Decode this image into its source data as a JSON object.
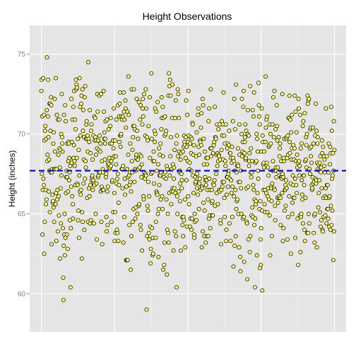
{
  "chart_data": {
    "type": "scatter",
    "title": "Height Observations",
    "xlabel": "",
    "ylabel": "Height (inches)",
    "ylim": [
      57.6,
      76.8
    ],
    "yticks": [
      60,
      65,
      70,
      75
    ],
    "xlim": [
      -40,
      1040
    ],
    "n_points": 1000,
    "y_values": [
      72.7,
      73.4,
      67.5,
      71.1,
      63.7,
      66.5,
      73.5,
      67.2,
      66.8,
      71.2,
      62.5,
      69.6,
      64.5,
      70.2,
      70.5,
      66.5,
      65.6,
      69.7,
      65.9,
      71.5,
      74.8,
      68.3,
      68.7,
      71.1,
      73.4,
      69.8,
      66.4,
      68.4,
      67.7,
      71.9,
      65.1,
      71.9,
      70.2,
      67.6,
      72.3,
      71.8,
      63.1,
      67.6,
      67.8,
      66.2,
      65.7,
      65.8,
      69.4,
      65.4,
      70.1,
      64.5,
      67.8,
      72.2,
      68.9,
      67.8,
      65.6,
      73.5,
      66.3,
      63.3,
      67.8,
      71.2,
      65.9,
      66.5,
      63.9,
      70.9,
      68.7,
      66.1,
      64.9,
      70.9,
      69.1,
      67.9,
      62.2,
      69.0,
      66.6,
      64.4,
      70.0,
      67.4,
      72.5,
      69.8,
      69.4,
      68.9,
      64.1,
      61.0,
      59.6,
      63.0,
      71.2,
      63.7,
      65.0,
      62.4,
      71.8,
      63.5,
      70.8,
      66.3,
      67.3,
      67.7,
      63.7,
      67.3,
      69.4,
      62.8,
      66.4,
      68.3,
      69.5,
      69.4,
      67.1,
      68.5,
      67.6,
      64.6,
      68.0,
      60.4,
      64.1,
      66.7,
      72.2,
      68.2,
      69.5,
      66.1,
      70.9,
      65.6,
      64.7,
      71.7,
      68.5,
      69.3,
      72.7,
      68.3,
      68.0,
      70.9,
      66.8,
      70.3,
      73.4,
      72.8,
      73.1,
      68.5,
      72.9,
      66.9,
      66.8,
      69.7,
      64.6,
      65.2,
      69.0,
      63.5,
      67.4,
      73.5,
      66.4,
      71.7,
      69.9,
      66.2,
      66.5,
      71.9,
      72.4,
      62.2,
      65.1,
      72.8,
      64.5,
      70.2,
      71.5,
      66.9,
      68.4,
      69.8,
      64.0,
      72.3,
      67.2,
      73.0,
      68.3,
      67.9,
      69.7,
      70.6,
      70.8,
      69.7,
      66.0,
      69.9,
      68.9,
      64.5,
      74.5,
      69.7,
      66.6,
      69.5,
      66.1,
      71.5,
      64.4,
      66.8,
      68.8,
      64.6,
      70.2,
      70.6,
      67.1,
      67.3,
      67.4,
      68.4,
      66.5,
      67.1,
      69.9,
      64.4,
      66.9,
      71.1,
      66.8,
      69.6,
      71.0,
      69.8,
      65.0,
      68.7,
      69.6,
      66.9,
      63.4,
      69.1,
      72.5,
      71.4,
      67.3,
      69.6,
      67.4,
      69.0,
      67.6,
      72.4,
      69.9,
      67.6,
      68.9,
      69.4,
      66.4,
      72.5,
      64.5,
      66.7,
      68.3,
      63.1,
      66.5,
      67.8,
      67.6,
      66.5,
      72.7,
      71.4,
      69.7,
      70.1,
      68.4,
      69.4,
      69.7,
      70.8,
      67.3,
      67.5,
      64.8,
      63.9,
      70.9,
      66.4,
      64.3,
      66.7,
      68.2,
      68.0,
      70.3,
      68.1,
      68.5,
      67.8,
      67.9,
      69.4,
      70.5,
      71.0,
      68.0,
      68.3,
      64.5,
      69.4,
      67.0,
      67.1,
      68.5,
      69.6,
      65.1,
      69.1,
      71.6,
      68.6,
      66.3,
      63.3,
      69.6,
      65.1,
      63.8,
      68.6,
      68.1,
      70.9,
      66.9,
      64.0,
      67.2,
      63.8,
      67.5,
      71.8,
      63.3,
      65.7,
      66.8,
      71.1,
      69.5,
      71.9,
      72.6,
      69.9,
      69.2,
      69.9,
      70.0,
      71.1,
      67.8,
      70.9,
      67.8,
      66.6,
      71.1,
      68.0,
      63.2,
      72.6,
      71.4,
      64.8,
      70.9,
      67.2,
      66.2,
      72.1,
      71.6,
      70.4,
      62.1,
      66.7,
      62.1,
      67.8,
      71.4,
      62.1,
      67.3,
      68.7,
      73.6,
      71.2,
      67.4,
      64.3,
      66.8,
      67.6,
      69.4,
      67.0,
      61.5,
      66.4,
      63.6,
      72.8,
      68.3,
      67.6,
      69.0,
      64.5,
      69.8,
      70.5,
      65.3,
      72.8,
      70.5,
      67.0,
      70.3,
      67.8,
      64.7,
      67.7,
      65.4,
      68.5,
      68.7,
      72.2,
      70.2,
      65.0,
      68.4,
      68.4,
      69.7,
      67.8,
      65.5,
      72.0,
      65.6,
      67.9,
      68.7,
      70.9,
      64.3,
      71.8,
      64.0,
      68.6,
      67.3,
      68.1,
      62.7,
      70.6,
      71.6,
      72.2,
      71.1,
      66.1,
      65.9,
      72.5,
      67.6,
      67.4,
      67.2,
      69.9,
      67.5,
      72.8,
      67.4,
      71.6,
      59.0,
      69.8,
      63.6,
      65.5,
      69.6,
      65.2,
      67.0,
      70.5,
      63.8,
      66.1,
      63.4,
      72.3,
      68.5,
      64.2,
      61.9,
      62.8,
      67.5,
      73.8,
      69.7,
      64.1,
      67.6,
      62.4,
      63.5,
      62.5,
      68.3,
      68.9,
      66.9,
      68.3,
      70.2,
      69.5,
      71.6,
      70.0,
      63.5,
      64.5,
      71.4,
      66.4,
      66.3,
      67.7,
      66.2,
      72.0,
      65.0,
      68.1,
      62.3,
      65.3,
      69.1,
      66.8,
      67.4,
      68.7,
      67.4,
      69.4,
      65.9,
      67.6,
      70.3,
      72.3,
      71.0,
      66.1,
      65.3,
      71.7,
      68.6,
      61.5,
      71.0,
      67.3,
      61.8,
      63.2,
      69.9,
      71.1,
      67.6,
      70.0,
      67.2,
      70.2,
      65.9,
      68.0,
      61.2,
      64.0,
      67.8,
      65.0,
      63.8,
      72.4,
      63.2,
      73.8,
      66.3,
      73.0,
      67.4,
      73.4,
      68.6,
      72.4,
      69.8,
      65.6,
      66.4,
      67.8,
      71.0,
      73.1,
      66.6,
      68.1,
      66.4,
      62.7,
      67.2,
      67.9,
      66.6,
      69.0,
      63.9,
      71.0,
      66.3,
      72.1,
      63.6,
      69.4,
      60.4,
      69.9,
      66.1,
      65.0,
      72.8,
      68.6,
      72.5,
      66.4,
      71.0,
      68.9,
      67.6,
      67.7,
      65.8,
      66.9,
      68.4,
      62.7,
      68.8,
      67.5,
      66.6,
      67.1,
      64.8,
      64.3,
      68.9,
      63.6,
      64.8,
      69.2,
      64.6,
      69.9,
      69.5,
      69.3,
      65.9,
      62.9,
      68.5,
      69.8,
      72.1,
      67.1,
      69.2,
      64.2,
      71.2,
      68.3,
      69.5,
      66.1,
      72.7,
      69.9,
      65.6,
      67.8,
      68.2,
      64.2,
      69.4,
      64.7,
      69.8,
      68.8,
      67.7,
      64.0,
      69.7,
      64.7,
      70.7,
      70.6,
      67.4,
      68.7,
      66.3,
      69.3,
      63.7,
      63.5,
      65.0,
      64.5,
      67.3,
      66.9,
      67.0,
      68.6,
      64.6,
      70.1,
      66.6,
      67.5,
      67.2,
      66.2,
      71.2,
      71.6,
      69.2,
      65.3,
      68.7,
      66.9,
      67.2,
      69.6,
      69.5,
      66.5,
      70.4,
      69.3,
      71.3,
      62.9,
      66.7,
      66.6,
      72.2,
      63.9,
      71.8,
      65.7,
      69.7,
      68.1,
      63.6,
      65.2,
      68.9,
      67.3,
      67.1,
      63.2,
      66.8,
      68.5,
      67.1,
      63.6,
      68.1,
      66.5,
      68.5,
      65.9,
      63.6,
      70.8,
      64.7,
      71.6,
      67.2,
      64.9,
      66.5,
      64.1,
      69.1,
      72.8,
      68.6,
      69.1,
      65.7,
      66.5,
      64.9,
      65.8,
      64.9,
      68.8,
      66.9,
      69.3,
      66.8,
      69.5,
      67.1,
      71.7,
      65.5,
      69.8,
      69.8,
      69.7,
      67.5,
      68.7,
      66.3,
      70.6,
      68.0,
      68.8,
      65.6,
      68.3,
      70.3,
      68.7,
      68.6,
      66.5,
      66.4,
      70.6,
      68.4,
      64.6,
      64.4,
      63.1,
      66.5,
      69.0,
      70.8,
      69.9,
      66.7,
      67.0,
      70.6,
      68.4,
      72.6,
      67.0,
      69.9,
      66.0,
      64.8,
      69.4,
      68.3,
      68.0,
      70.6,
      63.3,
      64.0,
      66.2,
      67.3,
      69.1,
      67.3,
      69.4,
      66.7,
      67.5,
      67.7,
      69.3,
      70.2,
      64.4,
      67.2,
      68.8,
      68.8,
      63.3,
      68.5,
      67.1,
      66.3,
      68.2,
      69.2,
      64.8,
      66.7,
      70.8,
      68.5,
      61.7,
      68.3,
      66.1,
      72.2,
      63.0,
      67.7,
      70.3,
      66.5,
      63.6,
      73.1,
      65.3,
      67.6,
      65.8,
      68.0,
      65.9,
      68.1,
      69.1,
      68.0,
      65.0,
      67.0,
      62.9,
      70.6,
      68.7,
      67.0,
      62.3,
      61.4,
      67.7,
      66.6,
      65.0,
      70.0,
      72.2,
      68.6,
      68.9,
      69.5,
      64.7,
      71.7,
      72.7,
      64.8,
      62.0,
      68.8,
      69.5,
      69.8,
      70.6,
      68.4,
      68.5,
      70.2,
      66.6,
      64.5,
      64.4,
      60.9,
      70.0,
      71.5,
      66.7,
      63.4,
      69.9,
      68.0,
      68.3,
      68.8,
      62.6,
      73.0,
      63.6,
      67.6,
      69.1,
      67.3,
      64.9,
      67.6,
      68.3,
      65.4,
      71.5,
      64.8,
      66.8,
      71.1,
      66.5,
      72.6,
      64.3,
      65.9,
      60.4,
      64.7,
      68.2,
      65.6,
      65.8,
      68.3,
      70.0,
      62.4,
      69.7,
      66.3,
      68.9,
      67.7,
      67.2,
      73.2,
      71.8,
      71.1,
      65.3,
      70.6,
      61.6,
      65.8,
      63.4,
      61.8,
      64.1,
      68.9,
      71.6,
      65.2,
      60.2,
      69.9,
      69.5,
      68.1,
      66.5,
      68.2,
      67.9,
      68.9,
      65.6,
      65.1,
      66.5,
      69.5,
      73.6,
      70.4,
      66.3,
      70.9,
      68.2,
      71.1,
      65.1,
      66.1,
      67.9,
      66.6,
      67.4,
      69.2,
      65.9,
      69.3,
      64.9,
      70.6,
      62.4,
      70.0,
      69.4,
      66.7,
      66.6,
      65.8,
      63.6,
      66.9,
      70.6,
      67.7,
      68.3,
      72.3,
      67.7,
      69.8,
      66.6,
      72.7,
      66.5,
      65.5,
      64.6,
      70.3,
      67.9,
      67.7,
      67.3,
      71.8,
      70.5,
      69.6,
      66.0,
      67.9,
      65.7,
      67.6,
      69.8,
      66.0,
      66.1,
      68.6,
      69.1,
      69.4,
      66.0,
      64.3,
      67.3,
      68.3,
      67.3,
      67.2,
      66.3,
      72.5,
      67.5,
      63.3,
      67.3,
      64.1,
      68.3,
      68.5,
      69.7,
      65.2,
      66.5,
      66.5,
      66.8,
      65.5,
      67.1,
      69.7,
      66.6,
      69.8,
      68.5,
      63.4,
      69.9,
      68.7,
      64.8,
      71.0,
      71.0,
      66.1,
      72.4,
      69.5,
      68.8,
      70.9,
      66.9,
      62.5,
      70.1,
      68.4,
      71.2,
      69.1,
      65.0,
      65.7,
      67.4,
      66.8,
      69.3,
      66.0,
      68.4,
      66.0,
      69.1,
      72.4,
      67.2,
      63.5,
      71.4,
      68.3,
      66.8,
      70.1,
      66.3,
      68.7,
      67.9,
      64.7,
      68.2,
      61.8,
      72.2,
      71.6,
      68.3,
      67.4,
      68.0,
      64.9,
      71.2,
      62.6,
      69.1,
      64.8,
      65.0,
      69.4,
      67.1,
      66.2,
      65.9,
      70.5,
      64.4,
      70.8,
      67.4,
      67.4,
      66.8,
      64.0,
      71.3,
      63.3,
      68.3,
      66.0,
      68.4,
      69.8,
      69.3,
      67.9,
      70.0,
      63.8,
      72.4,
      71.9,
      63.8,
      72.1,
      65.0,
      72.2,
      64.4,
      67.8,
      69.1,
      67.5,
      70.3,
      70.4,
      68.6,
      69.2,
      68.2,
      66.8,
      66.5,
      66.6,
      67.3,
      70.4,
      66.9,
      69.4,
      63.8,
      67.0,
      64.9,
      63.2,
      65.0,
      69.9,
      67.2,
      71.9,
      66.9,
      67.1,
      70.2,
      62.9,
      68.2,
      69.4,
      69.8,
      67.8,
      65.4,
      68.1,
      66.3,
      67.7,
      67.1,
      68.2,
      65.1,
      68.6,
      64.2,
      67.6,
      67.9,
      64.6,
      66.6,
      69.6,
      68.8,
      64.0,
      63.9,
      69.2,
      66.0,
      64.8,
      68.6,
      68.0,
      68.4,
      67.6,
      66.1,
      64.9,
      66.6,
      71.6,
      66.0,
      64.4,
      68.6,
      66.8,
      65.3,
      66.8,
      65.3,
      64.7,
      67.6,
      69.4,
      66.0,
      64.2,
      66.1,
      68.1,
      69.2,
      64.0,
      68.8,
      65.5,
      71.7,
      64.3,
      70.2,
      67.2,
      65.2,
      67.4,
      68.8,
      62.1,
      67.7,
      70.8,
      63.9,
      69.0
    ],
    "reference_lines": [
      {
        "type": "hline",
        "y": 67.7,
        "style": "dashed",
        "color": "#0000ff"
      }
    ],
    "point_fill": "#ffff66",
    "point_stroke": "#000000",
    "panel_background": "#e5e5e5",
    "gridline_color": "#ffffff",
    "grid": true,
    "legend": "none"
  }
}
